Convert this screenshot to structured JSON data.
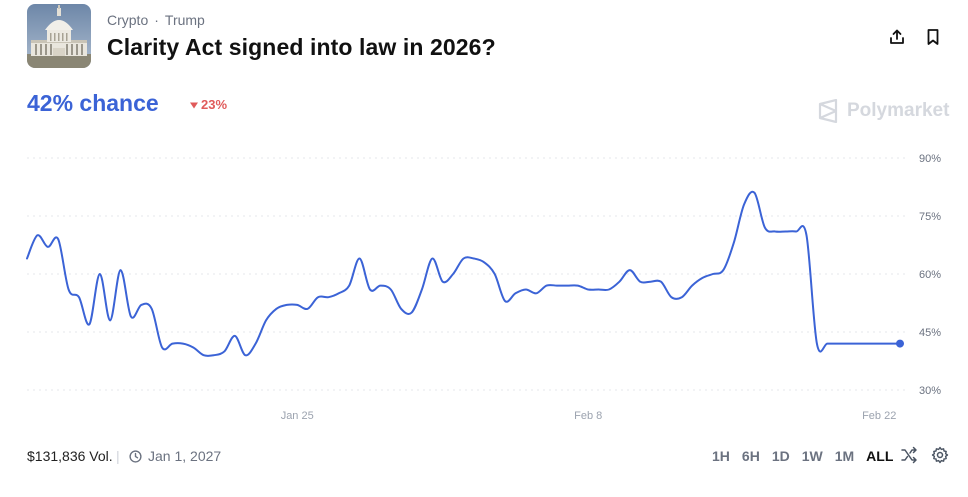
{
  "header": {
    "category": "Crypto",
    "separator": "·",
    "tag": "Trump",
    "title": "Clarity Act signed into law in 2026?"
  },
  "market": {
    "chance_text": "42% chance",
    "change_text": "23%",
    "change_direction": "down",
    "brand": "Polymarket"
  },
  "colors": {
    "accent": "#3b63d6",
    "negative": "#e05a5a",
    "brand": "#d5d8de"
  },
  "icons": [
    "share-icon",
    "bookmark-icon",
    "triangle-down-icon",
    "polymarket-logo-icon",
    "clock-icon",
    "shuffle-icon",
    "gear-icon"
  ],
  "footer": {
    "volume": "$131,836 Vol.",
    "divider": "|",
    "end_date": "Jan 1, 2027",
    "ranges": [
      "1H",
      "6H",
      "1D",
      "1W",
      "1M",
      "ALL"
    ],
    "active_range": "ALL"
  },
  "chart_data": {
    "type": "line",
    "title": "",
    "xlabel": "",
    "ylabel": "",
    "y_ticks": [
      "90%",
      "75%",
      "60%",
      "45%",
      "30%"
    ],
    "x_ticks": [
      "Jan 25",
      "Feb 8",
      "Feb 22"
    ],
    "ylim": [
      25,
      93
    ],
    "grid": true,
    "series": [
      {
        "color": "#3b63d6",
        "x": [
          "Jan 12",
          "Jan 12",
          "Jan 13",
          "Jan 13",
          "Jan 14",
          "Jan 14",
          "Jan 15",
          "Jan 15",
          "Jan 16",
          "Jan 16",
          "Jan 17",
          "Jan 17",
          "Jan 18",
          "Jan 18",
          "Jan 19",
          "Jan 19",
          "Jan 20",
          "Jan 20",
          "Jan 21",
          "Jan 21",
          "Jan 22",
          "Jan 22",
          "Jan 23",
          "Jan 23",
          "Jan 24",
          "Jan 24",
          "Jan 25",
          "Jan 25",
          "Jan 26",
          "Jan 26",
          "Jan 27",
          "Jan 27",
          "Jan 28",
          "Jan 28",
          "Jan 29",
          "Jan 29",
          "Jan 30",
          "Jan 30",
          "Jan 31",
          "Jan 31",
          "Feb 1",
          "Feb 1",
          "Feb 2",
          "Feb 2",
          "Feb 3",
          "Feb 3",
          "Feb 4",
          "Feb 4",
          "Feb 5",
          "Feb 5",
          "Feb 6",
          "Feb 6",
          "Feb 7",
          "Feb 7",
          "Feb 8",
          "Feb 8",
          "Feb 9",
          "Feb 9",
          "Feb 10",
          "Feb 10",
          "Feb 11",
          "Feb 11",
          "Feb 12",
          "Feb 12",
          "Feb 13",
          "Feb 13",
          "Feb 14",
          "Feb 14",
          "Feb 15",
          "Feb 15",
          "Feb 16",
          "Feb 16",
          "Feb 17",
          "Feb 17",
          "Feb 18",
          "Feb 18",
          "Feb 19",
          "Feb 19",
          "Feb 20",
          "Feb 20",
          "Feb 21",
          "Feb 21",
          "Feb 22",
          "Feb 22",
          "Feb 23"
        ],
        "values": [
          64,
          70,
          67,
          69,
          56,
          54,
          47,
          60,
          48,
          61,
          49,
          52,
          51,
          41,
          42,
          42,
          41,
          39,
          39,
          40,
          44,
          39,
          42,
          48,
          51,
          52,
          52,
          51,
          54,
          54,
          55,
          57,
          64,
          56,
          57,
          56,
          51,
          50,
          56,
          64,
          58,
          60,
          64,
          64,
          63,
          60,
          53,
          55,
          56,
          55,
          57,
          57,
          57,
          57,
          56,
          56,
          56,
          58,
          61,
          58,
          58,
          58,
          54,
          54,
          57,
          59,
          60,
          61,
          68,
          78,
          81,
          72,
          71,
          71,
          71,
          70,
          42,
          42,
          42,
          42,
          42,
          42,
          42,
          42,
          42
        ]
      }
    ]
  }
}
